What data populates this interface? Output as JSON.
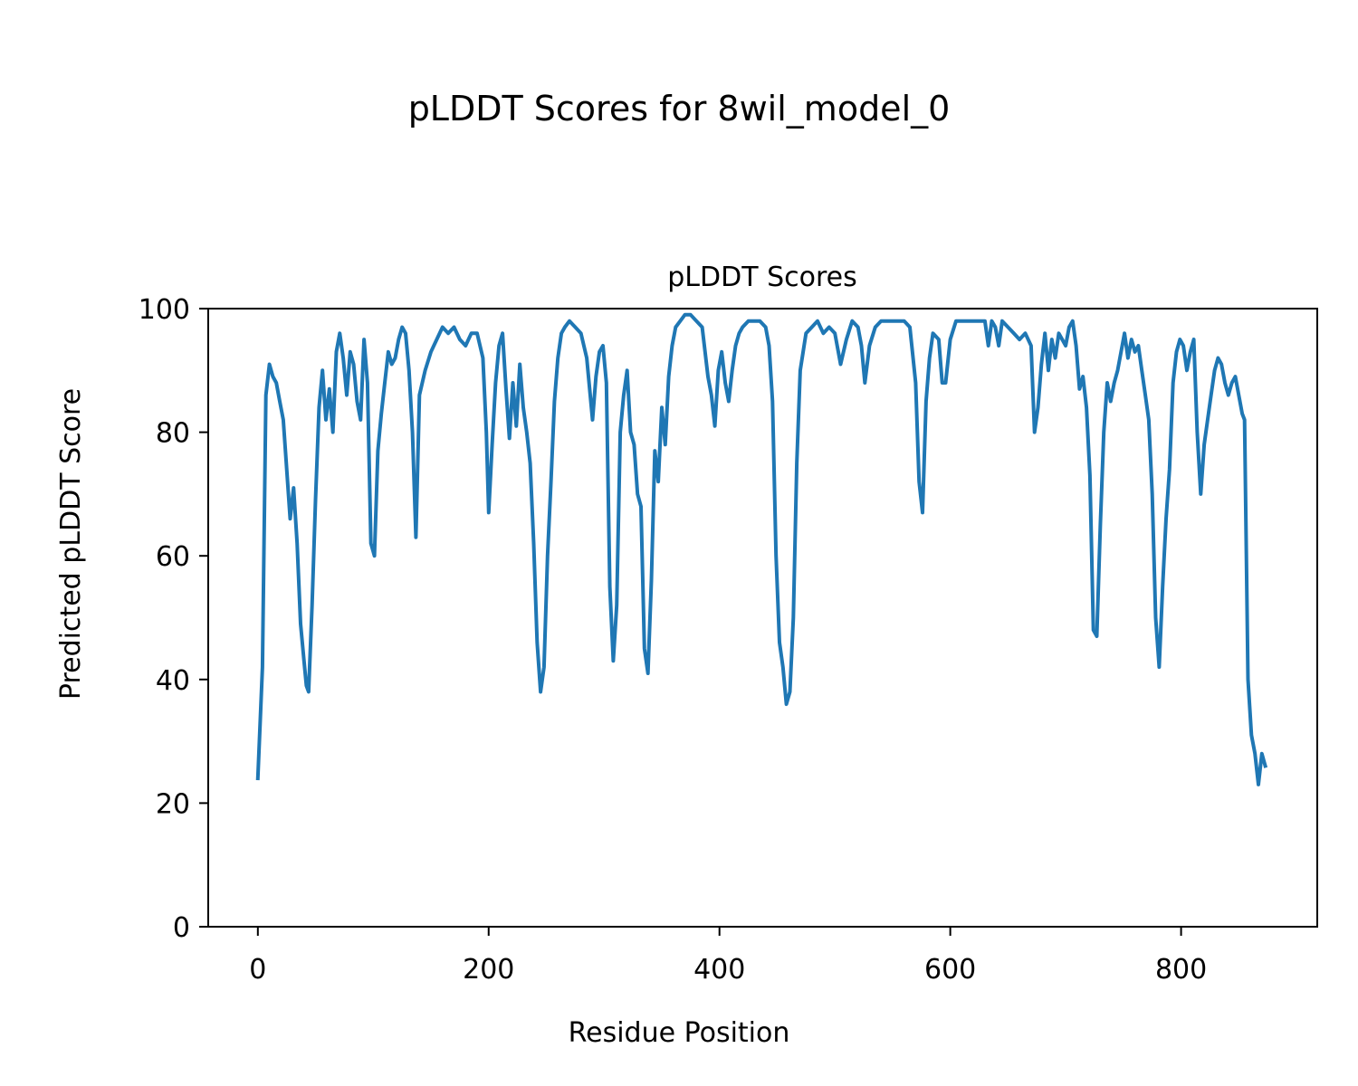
{
  "figure_title": "pLDDT Scores for 8wil_model_0",
  "chart_data": {
    "type": "line",
    "title": "pLDDT Scores",
    "xlabel": "Residue Position",
    "ylabel": "Predicted pLDDT Score",
    "xlim": [
      -43,
      918
    ],
    "ylim": [
      0,
      100
    ],
    "xticks": [
      0,
      200,
      400,
      600,
      800
    ],
    "yticks": [
      0,
      20,
      40,
      60,
      80,
      100
    ],
    "grid": false,
    "series": [
      {
        "name": "pLDDT",
        "color": "#1f77b4",
        "points": [
          [
            0,
            24
          ],
          [
            4,
            42
          ],
          [
            7,
            86
          ],
          [
            10,
            91
          ],
          [
            13,
            89
          ],
          [
            16,
            88
          ],
          [
            19,
            85
          ],
          [
            22,
            82
          ],
          [
            25,
            74
          ],
          [
            28,
            66
          ],
          [
            31,
            71
          ],
          [
            34,
            62
          ],
          [
            37,
            49
          ],
          [
            40,
            43
          ],
          [
            42,
            39
          ],
          [
            44,
            38
          ],
          [
            47,
            52
          ],
          [
            50,
            69
          ],
          [
            53,
            84
          ],
          [
            56,
            90
          ],
          [
            59,
            82
          ],
          [
            62,
            87
          ],
          [
            65,
            80
          ],
          [
            68,
            93
          ],
          [
            71,
            96
          ],
          [
            74,
            92
          ],
          [
            77,
            86
          ],
          [
            80,
            93
          ],
          [
            83,
            91
          ],
          [
            86,
            85
          ],
          [
            89,
            82
          ],
          [
            92,
            95
          ],
          [
            95,
            88
          ],
          [
            98,
            62
          ],
          [
            101,
            60
          ],
          [
            104,
            77
          ],
          [
            107,
            83
          ],
          [
            110,
            88
          ],
          [
            113,
            93
          ],
          [
            116,
            91
          ],
          [
            119,
            92
          ],
          [
            122,
            95
          ],
          [
            125,
            97
          ],
          [
            128,
            96
          ],
          [
            131,
            90
          ],
          [
            134,
            80
          ],
          [
            137,
            63
          ],
          [
            140,
            86
          ],
          [
            145,
            90
          ],
          [
            150,
            93
          ],
          [
            155,
            95
          ],
          [
            160,
            97
          ],
          [
            165,
            96
          ],
          [
            170,
            97
          ],
          [
            175,
            95
          ],
          [
            180,
            94
          ],
          [
            185,
            96
          ],
          [
            190,
            96
          ],
          [
            195,
            92
          ],
          [
            198,
            80
          ],
          [
            200,
            67
          ],
          [
            203,
            78
          ],
          [
            206,
            88
          ],
          [
            209,
            94
          ],
          [
            212,
            96
          ],
          [
            215,
            87
          ],
          [
            218,
            79
          ],
          [
            221,
            88
          ],
          [
            224,
            81
          ],
          [
            227,
            91
          ],
          [
            230,
            84
          ],
          [
            233,
            80
          ],
          [
            236,
            75
          ],
          [
            239,
            62
          ],
          [
            242,
            46
          ],
          [
            245,
            38
          ],
          [
            248,
            42
          ],
          [
            251,
            60
          ],
          [
            254,
            72
          ],
          [
            257,
            85
          ],
          [
            260,
            92
          ],
          [
            263,
            96
          ],
          [
            266,
            97
          ],
          [
            270,
            98
          ],
          [
            275,
            97
          ],
          [
            280,
            96
          ],
          [
            285,
            92
          ],
          [
            290,
            82
          ],
          [
            293,
            89
          ],
          [
            296,
            93
          ],
          [
            299,
            94
          ],
          [
            302,
            88
          ],
          [
            305,
            55
          ],
          [
            308,
            43
          ],
          [
            311,
            52
          ],
          [
            314,
            80
          ],
          [
            317,
            86
          ],
          [
            320,
            90
          ],
          [
            323,
            80
          ],
          [
            326,
            78
          ],
          [
            329,
            70
          ],
          [
            332,
            68
          ],
          [
            335,
            45
          ],
          [
            338,
            41
          ],
          [
            341,
            56
          ],
          [
            344,
            77
          ],
          [
            347,
            72
          ],
          [
            350,
            84
          ],
          [
            353,
            78
          ],
          [
            356,
            89
          ],
          [
            359,
            94
          ],
          [
            362,
            97
          ],
          [
            366,
            98
          ],
          [
            370,
            99
          ],
          [
            375,
            99
          ],
          [
            380,
            98
          ],
          [
            385,
            97
          ],
          [
            390,
            89
          ],
          [
            393,
            86
          ],
          [
            396,
            81
          ],
          [
            399,
            90
          ],
          [
            402,
            93
          ],
          [
            405,
            88
          ],
          [
            408,
            85
          ],
          [
            411,
            90
          ],
          [
            414,
            94
          ],
          [
            417,
            96
          ],
          [
            420,
            97
          ],
          [
            425,
            98
          ],
          [
            430,
            98
          ],
          [
            435,
            98
          ],
          [
            440,
            97
          ],
          [
            443,
            94
          ],
          [
            446,
            85
          ],
          [
            449,
            60
          ],
          [
            452,
            46
          ],
          [
            455,
            42
          ],
          [
            458,
            36
          ],
          [
            461,
            38
          ],
          [
            464,
            50
          ],
          [
            467,
            75
          ],
          [
            470,
            90
          ],
          [
            475,
            96
          ],
          [
            480,
            97
          ],
          [
            485,
            98
          ],
          [
            490,
            96
          ],
          [
            495,
            97
          ],
          [
            500,
            96
          ],
          [
            505,
            91
          ],
          [
            510,
            95
          ],
          [
            515,
            98
          ],
          [
            520,
            97
          ],
          [
            523,
            94
          ],
          [
            526,
            88
          ],
          [
            530,
            94
          ],
          [
            535,
            97
          ],
          [
            540,
            98
          ],
          [
            545,
            98
          ],
          [
            550,
            98
          ],
          [
            555,
            98
          ],
          [
            560,
            98
          ],
          [
            565,
            97
          ],
          [
            570,
            88
          ],
          [
            573,
            72
          ],
          [
            576,
            67
          ],
          [
            579,
            85
          ],
          [
            582,
            92
          ],
          [
            585,
            96
          ],
          [
            590,
            95
          ],
          [
            593,
            88
          ],
          [
            596,
            88
          ],
          [
            600,
            95
          ],
          [
            605,
            98
          ],
          [
            610,
            98
          ],
          [
            615,
            98
          ],
          [
            620,
            98
          ],
          [
            625,
            98
          ],
          [
            630,
            98
          ],
          [
            633,
            94
          ],
          [
            636,
            98
          ],
          [
            639,
            97
          ],
          [
            642,
            94
          ],
          [
            645,
            98
          ],
          [
            650,
            97
          ],
          [
            655,
            96
          ],
          [
            660,
            95
          ],
          [
            665,
            96
          ],
          [
            670,
            94
          ],
          [
            673,
            80
          ],
          [
            676,
            84
          ],
          [
            679,
            91
          ],
          [
            682,
            96
          ],
          [
            685,
            90
          ],
          [
            688,
            95
          ],
          [
            691,
            92
          ],
          [
            694,
            96
          ],
          [
            697,
            95
          ],
          [
            700,
            94
          ],
          [
            703,
            97
          ],
          [
            706,
            98
          ],
          [
            709,
            94
          ],
          [
            712,
            87
          ],
          [
            715,
            89
          ],
          [
            718,
            84
          ],
          [
            721,
            73
          ],
          [
            724,
            48
          ],
          [
            727,
            47
          ],
          [
            730,
            65
          ],
          [
            733,
            80
          ],
          [
            736,
            88
          ],
          [
            739,
            85
          ],
          [
            742,
            88
          ],
          [
            745,
            90
          ],
          [
            748,
            93
          ],
          [
            751,
            96
          ],
          [
            754,
            92
          ],
          [
            757,
            95
          ],
          [
            760,
            93
          ],
          [
            763,
            94
          ],
          [
            766,
            90
          ],
          [
            769,
            86
          ],
          [
            772,
            82
          ],
          [
            775,
            70
          ],
          [
            778,
            50
          ],
          [
            781,
            42
          ],
          [
            784,
            55
          ],
          [
            787,
            66
          ],
          [
            790,
            74
          ],
          [
            793,
            88
          ],
          [
            796,
            93
          ],
          [
            799,
            95
          ],
          [
            802,
            94
          ],
          [
            805,
            90
          ],
          [
            808,
            93
          ],
          [
            811,
            95
          ],
          [
            814,
            80
          ],
          [
            817,
            70
          ],
          [
            820,
            78
          ],
          [
            823,
            82
          ],
          [
            826,
            86
          ],
          [
            829,
            90
          ],
          [
            832,
            92
          ],
          [
            835,
            91
          ],
          [
            838,
            88
          ],
          [
            841,
            86
          ],
          [
            844,
            88
          ],
          [
            847,
            89
          ],
          [
            850,
            86
          ],
          [
            853,
            83
          ],
          [
            855,
            82
          ],
          [
            858,
            40
          ],
          [
            861,
            31
          ],
          [
            864,
            28
          ],
          [
            867,
            23
          ],
          [
            870,
            28
          ],
          [
            873,
            26
          ]
        ]
      }
    ]
  }
}
